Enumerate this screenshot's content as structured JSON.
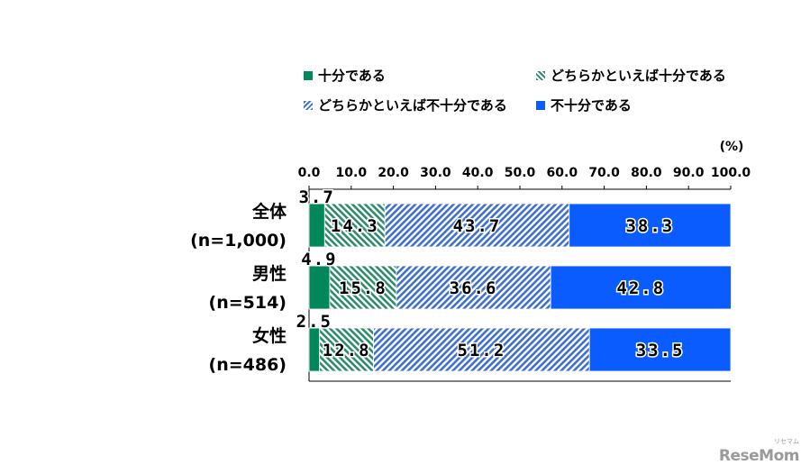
{
  "chart_data": {
    "type": "bar",
    "orientation": "horizontal",
    "stacked": true,
    "unit_label": "(%)",
    "xlim": [
      0,
      100
    ],
    "xticks": [
      "0.0",
      "10.0",
      "20.0",
      "30.0",
      "40.0",
      "50.0",
      "60.0",
      "70.0",
      "80.0",
      "90.0",
      "100.0"
    ],
    "categories": [
      [
        "全体",
        "(n=1,000)"
      ],
      [
        "男性",
        "(n=514)"
      ],
      [
        "女性",
        "(n=486)"
      ]
    ],
    "series": [
      {
        "name": "十分である",
        "values": [
          3.7,
          4.9,
          2.5
        ],
        "labels": [
          "3.7",
          "4.9",
          "2.5"
        ],
        "color": "#00875a",
        "pattern": "solid"
      },
      {
        "name": "どちらかといえば十分である",
        "values": [
          14.3,
          15.8,
          12.8
        ],
        "labels": [
          "14.3",
          "15.8",
          "12.8"
        ],
        "color": "#2e8b6a",
        "pattern": "hatch-green"
      },
      {
        "name": "どちらかといえば不十分である",
        "values": [
          43.7,
          36.6,
          51.2
        ],
        "labels": [
          "43.7",
          "36.6",
          "51.2"
        ],
        "color": "#3f6fd1",
        "pattern": "hatch-blue"
      },
      {
        "name": "不十分である",
        "values": [
          38.3,
          42.8,
          33.5
        ],
        "labels": [
          "38.3",
          "42.8",
          "33.5"
        ],
        "color": "#0a5cff",
        "pattern": "solid"
      }
    ]
  },
  "watermark": "ReseMom",
  "watermark_small": "リセマム"
}
